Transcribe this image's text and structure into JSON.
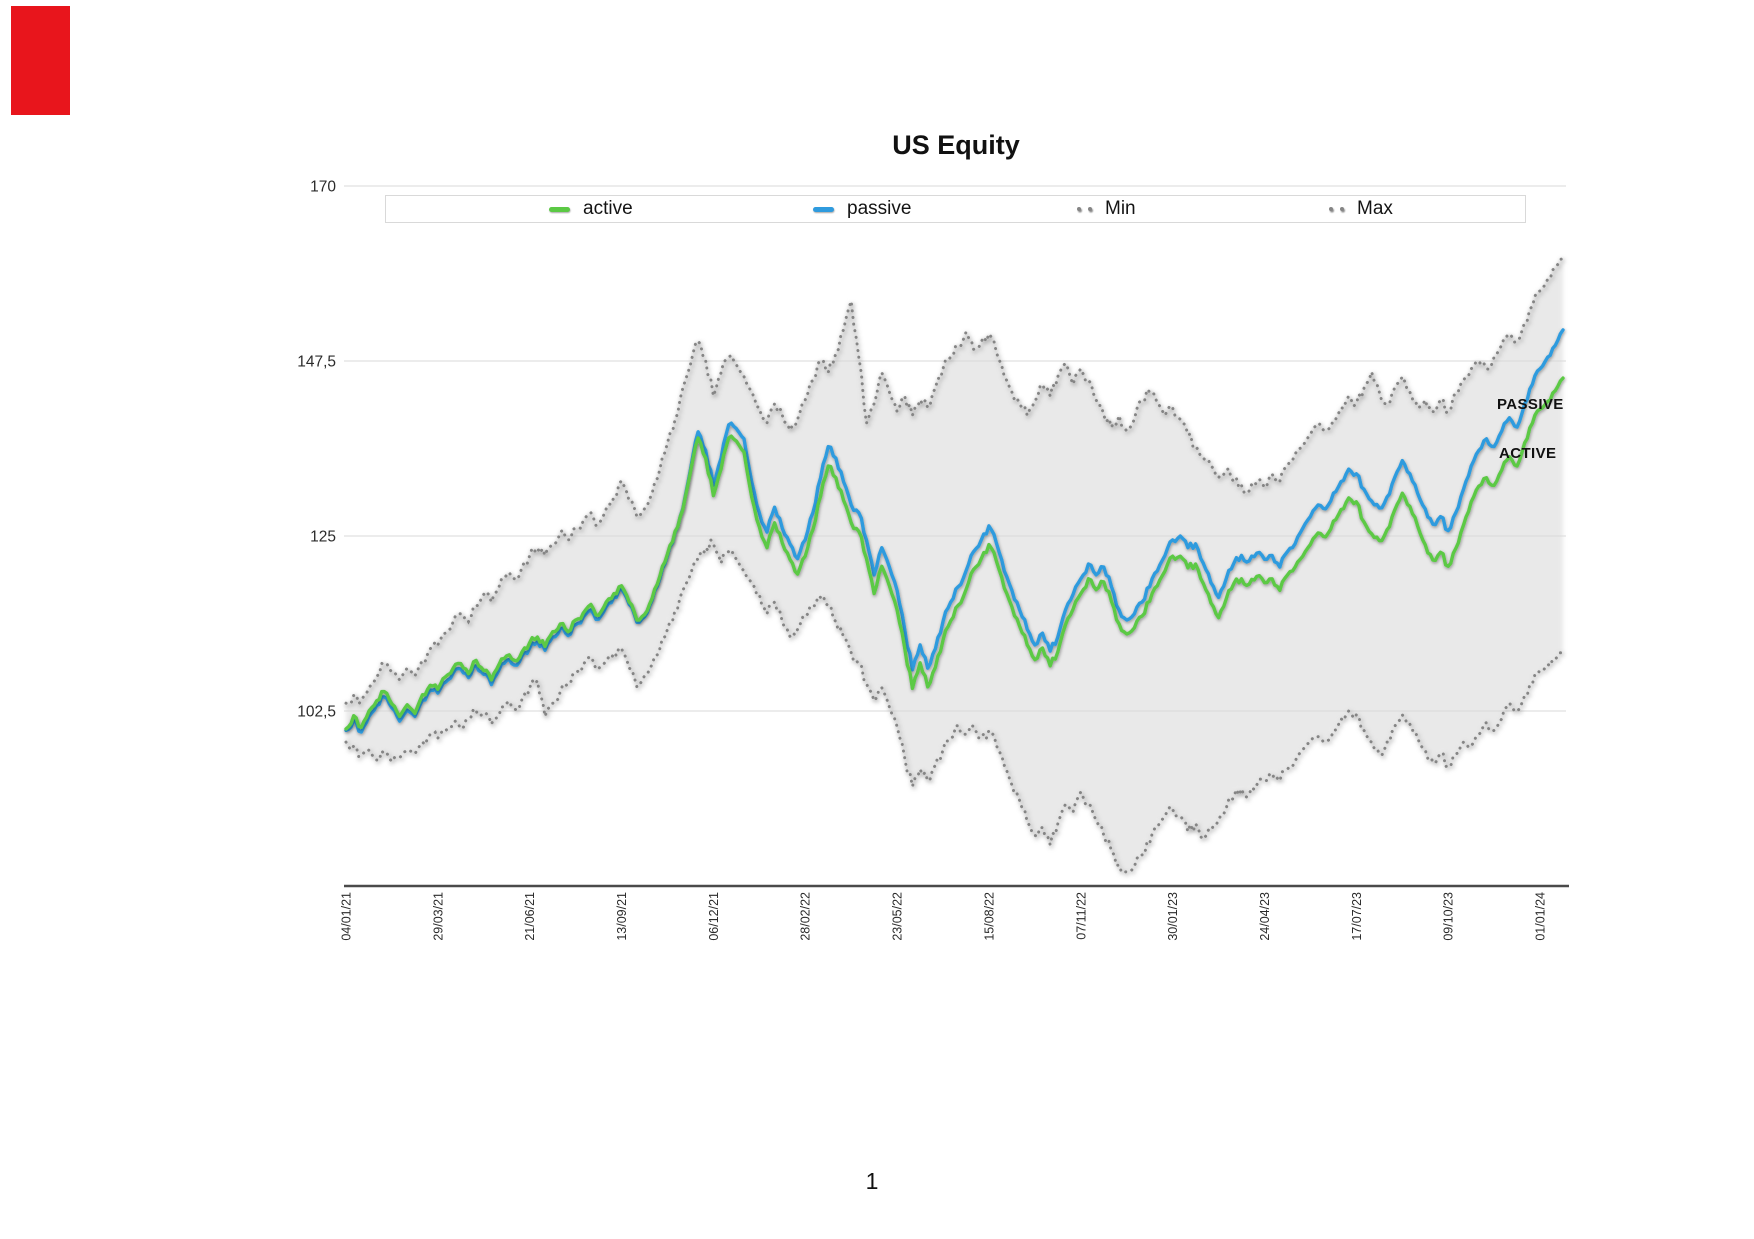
{
  "page": {
    "number": "1"
  },
  "colors": {
    "active_green": "#5bc944",
    "passive_blue": "#2f9bde",
    "minmax_dot_gray": "#858585",
    "band_fill": "#e9e9e9",
    "gridline": "#d9d9d9",
    "axis_line": "#4a4a4a",
    "red_marker": "#e8151c",
    "label_text": "#2b2b2b"
  },
  "legend": {
    "items": [
      {
        "label": "active",
        "marker": "line",
        "color_key": "active_green"
      },
      {
        "label": "passive",
        "marker": "line",
        "color_key": "passive_blue"
      },
      {
        "label": "Min",
        "marker": "dots",
        "color_key": "minmax_dot_gray"
      },
      {
        "label": "Max",
        "marker": "dots",
        "color_key": "minmax_dot_gray"
      }
    ]
  },
  "annotations": [
    {
      "text": "PASSIVE"
    },
    {
      "text": "ACTIVE"
    }
  ],
  "chart_data": {
    "type": "line",
    "title": "US Equity",
    "xlabel": "",
    "ylabel": "",
    "ylim": [
      80,
      170
    ],
    "grid": true,
    "legend_position": "top",
    "ytick_values": [
      170,
      147.5,
      125,
      102.5
    ],
    "ytick_labels": [
      "170",
      "147,5",
      "125",
      "102,5"
    ],
    "x_labels": [
      "04/01/21",
      "29/03/21",
      "21/06/21",
      "13/09/21",
      "06/12/21",
      "28/02/22",
      "23/05/22",
      "15/08/22",
      "07/11/22",
      "30/01/23",
      "24/04/23",
      "17/07/23",
      "09/10/23",
      "01/01/24"
    ],
    "x_label_every_n_points": 12,
    "sampling": "weekly",
    "series": [
      {
        "name": "active",
        "style": "solid",
        "color_key": "active_green",
        "values": [
          100.2,
          101.9,
          100.4,
          102.5,
          103.8,
          105.0,
          103.4,
          101.8,
          103.3,
          102.2,
          104.6,
          105.8,
          105.3,
          106.9,
          108.0,
          108.6,
          107.3,
          109.0,
          107.7,
          106.5,
          108.5,
          109.6,
          109.0,
          110.1,
          111.3,
          112.0,
          110.8,
          112.7,
          113.7,
          112.7,
          114.2,
          115.1,
          116.2,
          114.8,
          116.5,
          117.6,
          118.6,
          116.5,
          114.2,
          114.9,
          117.0,
          119.8,
          122.7,
          125.6,
          128.4,
          133.2,
          137.6,
          135.0,
          130.2,
          133.6,
          137.6,
          137.2,
          135.8,
          130.0,
          126.2,
          123.5,
          126.7,
          124.1,
          122.0,
          120.1,
          122.4,
          125.8,
          130.1,
          134.0,
          132.5,
          129.6,
          126.7,
          125.6,
          122.1,
          117.6,
          121.1,
          118.6,
          115.5,
          110.6,
          105.4,
          108.7,
          105.6,
          108.1,
          111.6,
          114.1,
          116.1,
          118.1,
          120.7,
          122.1,
          123.9,
          121.7,
          118.3,
          115.9,
          113.4,
          111.0,
          109.1,
          110.6,
          108.3,
          110.1,
          113.6,
          115.6,
          117.6,
          119.5,
          118.1,
          119.1,
          116.6,
          113.7,
          112.4,
          113.2,
          114.7,
          116.6,
          118.6,
          120.5,
          122.4,
          122.4,
          120.9,
          121.4,
          118.9,
          116.4,
          114.5,
          116.9,
          118.9,
          119.5,
          118.8,
          119.8,
          119.0,
          119.5,
          118.0,
          120.0,
          121.0,
          122.4,
          123.9,
          125.4,
          124.9,
          126.9,
          128.4,
          129.9,
          129.4,
          126.8,
          125.3,
          124.4,
          125.8,
          128.3,
          130.5,
          128.8,
          126.3,
          123.9,
          121.9,
          122.9,
          121.1,
          123.4,
          126.4,
          129.4,
          131.4,
          132.5,
          131.5,
          133.5,
          135.2,
          134.0,
          137.0,
          139.5,
          141.3,
          142.3,
          143.7,
          145.3
        ]
      },
      {
        "name": "passive",
        "style": "solid",
        "color_key": "passive_blue",
        "values": [
          100.0,
          101.3,
          99.8,
          101.8,
          103.2,
          104.3,
          102.9,
          101.2,
          102.6,
          101.8,
          103.9,
          105.2,
          104.8,
          106.2,
          107.4,
          107.9,
          106.8,
          108.3,
          107.2,
          105.9,
          107.8,
          109.0,
          108.4,
          109.6,
          110.6,
          111.4,
          110.3,
          112.0,
          113.1,
          112.2,
          113.6,
          114.6,
          115.5,
          114.3,
          115.9,
          117.1,
          118.2,
          116.2,
          113.9,
          114.6,
          116.8,
          119.5,
          122.5,
          125.5,
          128.5,
          133.5,
          138.4,
          136.0,
          131.5,
          135.0,
          139.3,
          138.8,
          137.5,
          132.0,
          128.0,
          125.5,
          128.7,
          126.0,
          124.0,
          122.1,
          124.5,
          128.0,
          132.5,
          136.5,
          135.0,
          132.0,
          129.0,
          128.0,
          124.5,
          120.0,
          123.5,
          121.0,
          118.0,
          113.0,
          107.8,
          111.0,
          108.0,
          110.5,
          114.0,
          116.5,
          118.5,
          120.5,
          123.0,
          124.5,
          126.3,
          124.0,
          120.5,
          118.0,
          115.5,
          113.0,
          111.0,
          112.5,
          110.2,
          112.0,
          115.5,
          117.5,
          119.5,
          121.4,
          120.0,
          121.0,
          118.5,
          115.5,
          114.2,
          115.0,
          116.5,
          118.5,
          120.5,
          122.5,
          124.5,
          125.0,
          123.5,
          124.0,
          121.5,
          119.0,
          117.1,
          119.5,
          121.5,
          122.5,
          121.8,
          122.8,
          122.0,
          122.5,
          121.0,
          123.0,
          124.0,
          126.0,
          127.5,
          129.0,
          128.5,
          130.5,
          132.0,
          133.6,
          133.0,
          131.0,
          129.5,
          128.6,
          130.0,
          132.5,
          134.7,
          133.0,
          130.5,
          128.5,
          126.5,
          127.5,
          125.7,
          128.0,
          131.0,
          134.0,
          136.0,
          137.5,
          136.5,
          138.5,
          140.2,
          139.0,
          142.0,
          144.5,
          146.5,
          148.0,
          149.5,
          151.5
        ]
      },
      {
        "name": "Min",
        "style": "dotted",
        "color_key": "minmax_dot_gray",
        "values": [
          98.5,
          98.0,
          96.8,
          97.5,
          96.2,
          97.0,
          96.0,
          96.5,
          97.5,
          97.0,
          98.5,
          99.5,
          99.0,
          100.0,
          101.0,
          100.2,
          101.5,
          102.5,
          101.8,
          100.8,
          102.0,
          103.5,
          102.8,
          104.0,
          105.5,
          106.4,
          101.8,
          103.5,
          105.0,
          106.0,
          107.5,
          108.5,
          109.5,
          108.0,
          109.0,
          110.0,
          110.5,
          108.0,
          105.6,
          107.0,
          108.5,
          110.5,
          113.0,
          115.5,
          118.0,
          120.0,
          122.0,
          123.5,
          124.0,
          121.5,
          123.0,
          122.0,
          120.5,
          119.0,
          117.5,
          115.0,
          116.5,
          114.0,
          112.1,
          113.0,
          114.5,
          116.0,
          117.1,
          116.0,
          114.0,
          112.0,
          110.0,
          108.5,
          106.0,
          103.8,
          105.5,
          103.0,
          100.5,
          96.5,
          92.8,
          95.0,
          93.5,
          95.5,
          97.5,
          99.0,
          100.6,
          99.5,
          100.5,
          99.0,
          100.0,
          98.0,
          95.5,
          93.0,
          91.0,
          88.2,
          86.5,
          87.5,
          85.3,
          88.0,
          90.5,
          89.5,
          92.1,
          90.5,
          88.5,
          86.5,
          84.5,
          82.7,
          81.8,
          82.5,
          84.0,
          85.5,
          87.5,
          89.0,
          89.9,
          89.0,
          87.0,
          88.0,
          86.0,
          87.1,
          88.5,
          90.0,
          91.5,
          92.5,
          91.8,
          93.0,
          93.5,
          94.5,
          93.5,
          95.0,
          96.0,
          97.5,
          98.5,
          99.2,
          98.5,
          100.0,
          101.5,
          102.5,
          102.0,
          100.0,
          98.5,
          97.0,
          98.5,
          100.5,
          102.0,
          100.8,
          99.0,
          97.5,
          96.0,
          97.0,
          95.5,
          97.0,
          98.5,
          98.0,
          99.5,
          101.0,
          100.0,
          101.5,
          103.5,
          102.5,
          104.5,
          106.0,
          107.5,
          108.5,
          109.2,
          110.0
        ]
      },
      {
        "name": "Max",
        "style": "dotted",
        "color_key": "minmax_dot_gray",
        "values": [
          103.5,
          104.5,
          103.8,
          105.5,
          107.0,
          108.5,
          107.5,
          106.5,
          108.0,
          107.0,
          109.0,
          110.5,
          111.0,
          112.5,
          114.0,
          115.0,
          114.0,
          116.0,
          117.5,
          116.5,
          118.5,
          120.0,
          119.5,
          121.0,
          122.5,
          123.5,
          122.5,
          124.0,
          125.5,
          124.5,
          126.0,
          127.0,
          128.0,
          126.5,
          128.5,
          130.0,
          132.1,
          129.5,
          127.5,
          128.5,
          130.5,
          133.5,
          137.0,
          140.0,
          144.0,
          147.0,
          150.1,
          147.5,
          143.0,
          146.0,
          148.0,
          147.0,
          145.5,
          143.5,
          141.5,
          139.5,
          142.0,
          140.5,
          138.6,
          140.0,
          142.5,
          145.0,
          147.5,
          146.0,
          148.5,
          151.5,
          155.2,
          148.0,
          139.5,
          142.0,
          146.0,
          143.5,
          141.0,
          143.0,
          140.5,
          142.5,
          141.5,
          144.0,
          146.5,
          148.0,
          149.5,
          151.2,
          149.0,
          150.0,
          151.0,
          148.5,
          145.5,
          143.5,
          142.0,
          140.5,
          142.5,
          144.5,
          143.0,
          145.5,
          147.2,
          144.5,
          146.5,
          145.0,
          142.5,
          140.5,
          139.0,
          140.5,
          138.5,
          140.0,
          142.5,
          143.5,
          142.0,
          140.5,
          141.5,
          140.0,
          138.0,
          136.5,
          135.0,
          134.0,
          132.5,
          133.5,
          132.0,
          131.5,
          130.8,
          132.0,
          131.2,
          133.0,
          132.0,
          134.0,
          135.5,
          136.5,
          138.0,
          139.5,
          138.5,
          140.0,
          141.5,
          143.0,
          142.0,
          144.0,
          146.1,
          143.5,
          142.0,
          144.0,
          145.5,
          143.5,
          141.5,
          142.5,
          141.0,
          142.5,
          141.0,
          143.5,
          145.0,
          146.5,
          147.5,
          146.5,
          148.0,
          149.5,
          151.0,
          150.0,
          152.5,
          154.5,
          156.5,
          158.0,
          159.5,
          160.7
        ]
      }
    ]
  }
}
